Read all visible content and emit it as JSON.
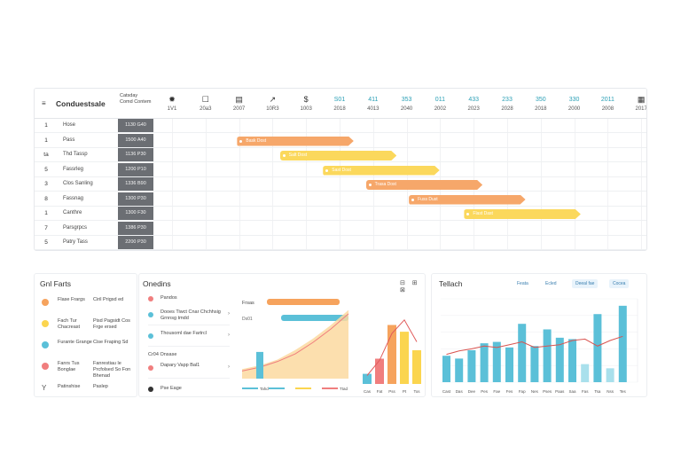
{
  "gantt": {
    "menu_icon": "≡",
    "title": "Conduestsale",
    "date_header": "Catsday Comd Contem",
    "columns": [
      {
        "icon": "✹",
        "label": "1V1"
      },
      {
        "icon": "☐",
        "label": "20a3"
      },
      {
        "icon": "▤",
        "label": "2007"
      },
      {
        "icon": "↗",
        "label": "10R3"
      },
      {
        "icon": "$",
        "label": "1003"
      },
      {
        "icon": "S01",
        "label": "2018",
        "teal": true
      },
      {
        "icon": "411",
        "label": "4013",
        "teal": true
      },
      {
        "icon": "353",
        "label": "2040",
        "teal": true
      },
      {
        "icon": "011",
        "label": "2002",
        "teal": true
      },
      {
        "icon": "433",
        "label": "2023",
        "teal": true
      },
      {
        "icon": "233",
        "label": "2028",
        "teal": true
      },
      {
        "icon": "350",
        "label": "2018",
        "teal": true
      },
      {
        "icon": "330",
        "label": "2000",
        "teal": true
      },
      {
        "icon": "2011",
        "label": "2008",
        "teal": true
      },
      {
        "icon": "▦",
        "label": "2017"
      }
    ],
    "rows": [
      {
        "num": "1",
        "name": "Hose",
        "date": "1130 G40"
      },
      {
        "num": "1",
        "name": "Pass",
        "date": "1500 A40"
      },
      {
        "num": "ta",
        "name": "Thd Tassp",
        "date": "1136 P30"
      },
      {
        "num": "5",
        "name": "Fassrleg",
        "date": "1200 P10"
      },
      {
        "num": "3",
        "name": "Clos Sanling",
        "date": "1336 B90"
      },
      {
        "num": "8",
        "name": "Fassnag",
        "date": "1300 P30"
      },
      {
        "num": "1",
        "name": "Canthre",
        "date": "1300 F30"
      },
      {
        "num": "7",
        "name": "Parsgrpcs",
        "date": "1386 P30"
      },
      {
        "num": "5",
        "name": "Patry Tass",
        "date": "2200 P30"
      }
    ],
    "bars": [
      {
        "row": 1,
        "start": 0.33,
        "end": 0.52,
        "color": "orange",
        "label": "Bask Dost"
      },
      {
        "row": 2,
        "start": 0.4,
        "end": 0.59,
        "color": "yellow",
        "label": "Salt Dost"
      },
      {
        "row": 3,
        "start": 0.47,
        "end": 0.66,
        "color": "yellow",
        "label": "Sast Dost"
      },
      {
        "row": 4,
        "start": 0.54,
        "end": 0.73,
        "color": "orange",
        "label": "Trasa Dost"
      },
      {
        "row": 5,
        "start": 0.61,
        "end": 0.8,
        "color": "orange",
        "label": "Fuss Dust"
      },
      {
        "row": 6,
        "start": 0.7,
        "end": 0.89,
        "color": "yellow",
        "label": "Flast Dast"
      }
    ]
  },
  "legend_panel": {
    "title": "Gnl Farts",
    "items": [
      {
        "color": "#f6a35d",
        "a": "Flase Frargs",
        "b": "Ciril Prigsd ed"
      },
      {
        "color": "#fbd54f",
        "a": "Fach Tur Chacreast",
        "b": "Pisd Pagsidt Cos Frge ersed"
      },
      {
        "color": "#5bc0d8",
        "a": "Furante Grange",
        "b": "Cise Fraping Sd"
      },
      {
        "color": "#f07e7e",
        "a": "Fanrs Tus Bonglae",
        "b": "Fanrestiau le Prcfolsed So Fon Bhenad"
      }
    ],
    "footer_icon": "Y",
    "footer_a": "Patinshise",
    "footer_b": "Paslep"
  },
  "center_panel": {
    "title": "Onedins",
    "tool_icons": "⊟ ⊞ ⊠",
    "header_item": "Pandos",
    "items": [
      {
        "color": "#5bc0d8",
        "text": "Dooes Tiwct Cnar Chchhsig Grnnsg tmdd"
      },
      {
        "color": "#5bc0d8",
        "text": "Thousoml dae Fartrcl"
      },
      {
        "color": "#f07e7e",
        "text": "Dapary Vapp Bal1"
      }
    ],
    "subheader": "Cr04 Onsase",
    "footer": "Pse Eage",
    "area_chart_title": "Frsas",
    "area_chart_sub": "Ds01",
    "legend": [
      {
        "color": "#5bc0d8",
        "label": "Tahd"
      },
      {
        "color": "#5bc0d8",
        "label": ""
      },
      {
        "color": "#fbd54f",
        "label": ""
      },
      {
        "color": "#f07e7e",
        "label": "Ttad"
      }
    ],
    "small_bars_labels": [
      "Cas",
      "Fat",
      "Pss",
      "Pt",
      "Tos"
    ]
  },
  "chart_data": [
    {
      "type": "area",
      "title": "",
      "x": [
        0,
        1,
        2,
        3,
        4,
        5,
        6
      ],
      "series": [
        {
          "name": "",
          "values": [
            5,
            7,
            10,
            15,
            21,
            28,
            36
          ],
          "color": "#fbd9a0"
        },
        {
          "name": "",
          "values": [
            4,
            6,
            9,
            13,
            19,
            26,
            34
          ],
          "color": "#f07e7e"
        }
      ],
      "bars": [
        0,
        14,
        0,
        0,
        0,
        0,
        0
      ],
      "xlabel": "",
      "ylabel": "",
      "ylim": [
        0,
        40
      ]
    },
    {
      "type": "bar",
      "title": "",
      "categories": [
        "Cas",
        "Fat",
        "Pss",
        "Pt",
        "Tos"
      ],
      "values": [
        12,
        30,
        70,
        62,
        40
      ],
      "colors": [
        "#5bc0d8",
        "#f07e7e",
        "#f6a35d",
        "#fbd54f",
        "#fbd54f"
      ],
      "line": [
        10,
        28,
        60,
        76,
        50
      ],
      "ylim": [
        0,
        80
      ]
    },
    {
      "type": "bar",
      "title": "Tellach",
      "categories": [
        "Cast",
        "Das",
        "Dee",
        "Pes",
        "Fae",
        "Fes",
        "Fap",
        "Nes",
        "Pses",
        "Paas",
        "Saa",
        "Fas",
        "Tsa",
        "Nss",
        "Tes"
      ],
      "values": [
        38,
        34,
        46,
        56,
        58,
        50,
        84,
        52,
        76,
        64,
        62,
        26,
        98,
        20,
        110
      ],
      "line": [
        40,
        45,
        48,
        52,
        50,
        54,
        58,
        50,
        52,
        54,
        60,
        62,
        52,
        60,
        66
      ],
      "ylim": [
        0,
        120
      ],
      "yticks": [
        "",
        "",
        "",
        "",
        "",
        ""
      ],
      "buttons": [
        "Feata",
        "Ecled",
        "Deeal fae",
        "Cocea"
      ]
    }
  ]
}
